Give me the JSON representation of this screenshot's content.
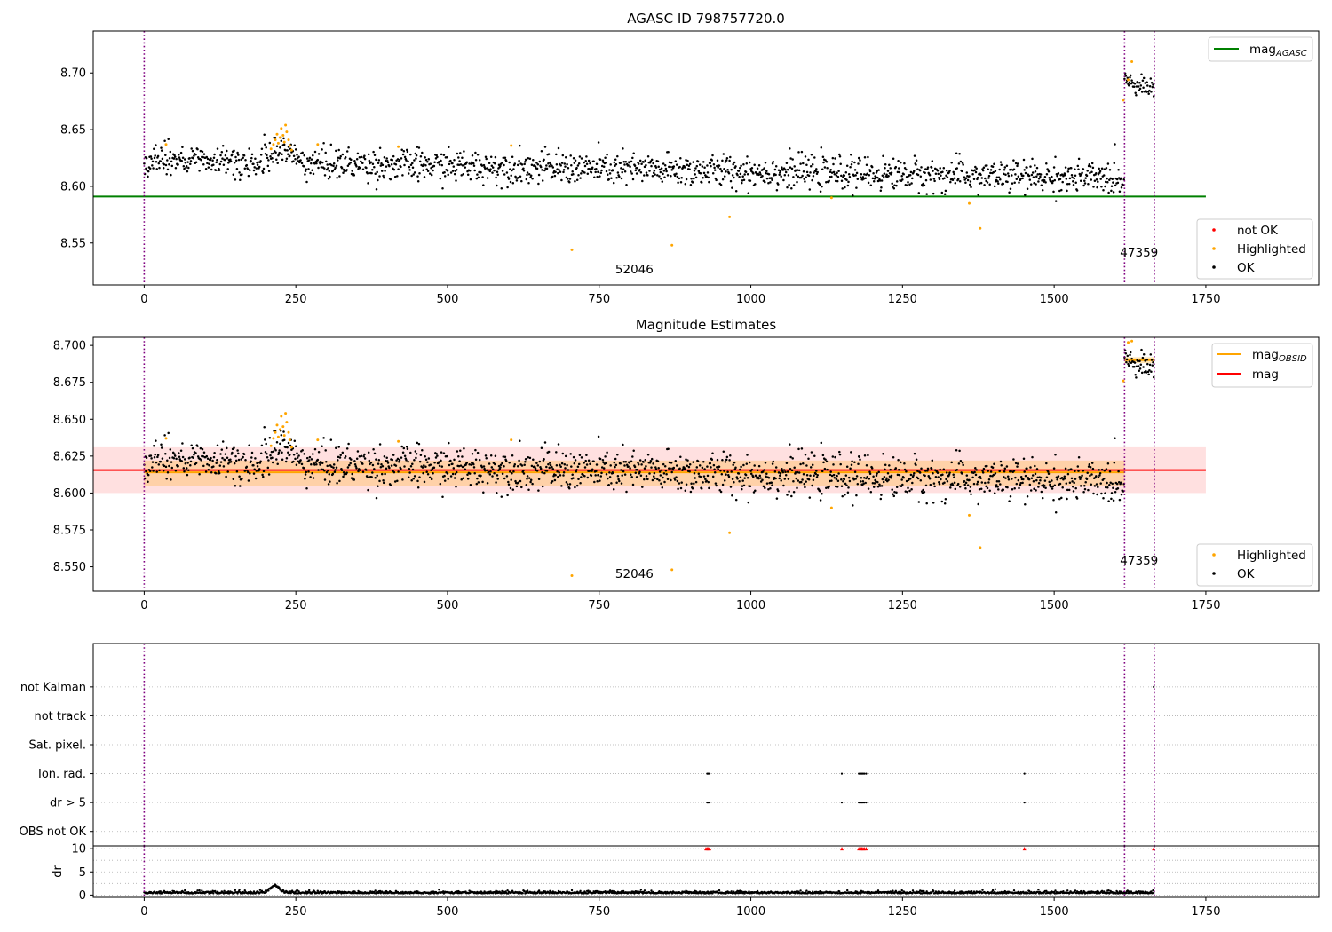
{
  "chart_data": [
    {
      "type": "scatter",
      "title": "AGASC ID 798757720.0",
      "xlim": [
        -84,
        1936
      ],
      "ylim": [
        8.513,
        8.737
      ],
      "xticks": [
        0,
        250,
        500,
        750,
        1000,
        1250,
        1500,
        1750
      ],
      "xtick_labels": [
        "0",
        "250",
        "500",
        "750",
        "1000",
        "1250",
        "1500",
        "1750"
      ],
      "yticks": [
        8.55,
        8.6,
        8.65,
        8.7
      ],
      "ytick_labels": [
        "8.55",
        "8.60",
        "8.65",
        "8.70"
      ],
      "colors": {
        "ok": "#000000",
        "highlighted": "#ffa500",
        "not_ok": "#ff0000",
        "mag_agasc": "#008000",
        "obsid_boundary": "#800080"
      },
      "observations": [
        {
          "label": "52046",
          "x_range": [
            0,
            1616
          ]
        },
        {
          "label": "47359",
          "x_range": [
            1616,
            1665
          ]
        }
      ],
      "obsid_boundaries": [
        0,
        1616,
        1665
      ],
      "annotations": [
        {
          "text": "52046",
          "x": 808,
          "y": 8.523
        },
        {
          "text": "47359",
          "x": 1640,
          "y": 8.538
        }
      ],
      "lines": [
        {
          "name": "mag_AGASC",
          "y": 8.591,
          "x_range": [
            -84,
            1750
          ]
        }
      ],
      "series": [
        {
          "name": "OK",
          "segments": [
            {
              "x_range": [
                0,
                1616
              ],
              "mean_start": 8.623,
              "mean_end": 8.607,
              "scatter": 0.007,
              "hump": {
                "x": 230,
                "width": 20,
                "height": 0.012
              }
            },
            {
              "x_range": [
                1616,
                1665
              ],
              "mean_start": 8.695,
              "mean_end": 8.685,
              "scatter": 0.004
            }
          ]
        },
        {
          "name": "Highlighted",
          "points": [
            [
              209,
              8.633
            ],
            [
              213,
              8.637
            ],
            [
              216,
              8.641
            ],
            [
              219,
              8.646
            ],
            [
              221,
              8.638
            ],
            [
              224,
              8.643
            ],
            [
              226,
              8.651
            ],
            [
              229,
              8.645
            ],
            [
              231,
              8.639
            ],
            [
              233,
              8.654
            ],
            [
              235,
              8.648
            ],
            [
              238,
              8.641
            ],
            [
              240,
              8.636
            ],
            [
              243,
              8.632
            ],
            [
              36,
              8.637
            ],
            [
              286,
              8.637
            ],
            [
              419,
              8.635
            ],
            [
              605,
              8.636
            ],
            [
              705,
              8.544
            ],
            [
              870,
              8.548
            ],
            [
              965,
              8.573
            ],
            [
              1133,
              8.59
            ],
            [
              1360,
              8.585
            ],
            [
              1378,
              8.563
            ],
            [
              1622,
              8.694
            ],
            [
              1628,
              8.71
            ],
            [
              1614,
              8.676
            ]
          ]
        },
        {
          "name": "not OK",
          "points": []
        }
      ],
      "legends": [
        {
          "position": "top-right",
          "entries": [
            {
              "label": "mag",
              "subscript": "AGASC",
              "kind": "line",
              "color": "#008000"
            }
          ]
        },
        {
          "position": "lower-right",
          "entries": [
            {
              "label": "not OK",
              "kind": "marker",
              "color": "#ff0000"
            },
            {
              "label": "Highlighted",
              "kind": "marker",
              "color": "#ffa500"
            },
            {
              "label": "OK",
              "kind": "marker",
              "color": "#000000"
            }
          ]
        }
      ]
    },
    {
      "type": "scatter",
      "title": "Magnitude Estimates",
      "xlim": [
        -84,
        1936
      ],
      "ylim": [
        8.5335,
        8.7055
      ],
      "xticks": [
        0,
        250,
        500,
        750,
        1000,
        1250,
        1500,
        1750
      ],
      "xtick_labels": [
        "0",
        "250",
        "500",
        "750",
        "1000",
        "1250",
        "1500",
        "1750"
      ],
      "yticks": [
        8.55,
        8.575,
        8.6,
        8.625,
        8.65,
        8.675,
        8.7
      ],
      "ytick_labels": [
        "8.550",
        "8.575",
        "8.600",
        "8.625",
        "8.650",
        "8.675",
        "8.700"
      ],
      "colors": {
        "ok": "#000000",
        "highlighted": "#ffa500",
        "mag": "#ff0000",
        "mag_obsid": "#ffa500",
        "obsid_boundary": "#800080"
      },
      "obsid_boundaries": [
        0,
        1616,
        1665
      ],
      "annotations": [
        {
          "text": "52046",
          "x": 808,
          "y": 8.5425
        },
        {
          "text": "47359",
          "x": 1640,
          "y": 8.5515
        }
      ],
      "bands": [
        {
          "name": "mag",
          "y_range": [
            8.6,
            8.631
          ],
          "x_range": [
            -84,
            1750
          ],
          "color": "#ff0000",
          "opacity": 0.12
        },
        {
          "name": "mag_OBSID 52046",
          "y_range": [
            8.605,
            8.622
          ],
          "x_range": [
            0,
            1616
          ],
          "color": "#ffa500",
          "opacity": 0.25
        },
        {
          "name": "mag_OBSID 47359",
          "y_range": [
            8.688,
            8.692
          ],
          "x_range": [
            1616,
            1665
          ],
          "color": "#ffa500",
          "opacity": 0.3
        }
      ],
      "lines": [
        {
          "name": "mag",
          "y": 8.6155,
          "x_range": [
            -84,
            1750
          ],
          "color": "#ff0000"
        },
        {
          "name": "mag_OBSID",
          "y": 8.614,
          "x_range": [
            0,
            1616
          ],
          "color": "#ffa500"
        },
        {
          "name": "mag_OBSID",
          "y": 8.69,
          "x_range": [
            1616,
            1665
          ],
          "color": "#ffa500"
        }
      ],
      "series": [
        {
          "name": "OK",
          "segments": [
            {
              "x_range": [
                0,
                1616
              ],
              "mean_start": 8.622,
              "mean_end": 8.607,
              "scatter": 0.007,
              "hump": {
                "x": 230,
                "width": 20,
                "height": 0.012
              }
            },
            {
              "x_range": [
                1616,
                1665
              ],
              "mean_start": 8.692,
              "mean_end": 8.684,
              "scatter": 0.004
            }
          ]
        },
        {
          "name": "Highlighted",
          "points": [
            [
              209,
              8.632
            ],
            [
              213,
              8.637
            ],
            [
              216,
              8.641
            ],
            [
              219,
              8.646
            ],
            [
              221,
              8.638
            ],
            [
              224,
              8.643
            ],
            [
              226,
              8.652
            ],
            [
              229,
              8.645
            ],
            [
              231,
              8.639
            ],
            [
              233,
              8.654
            ],
            [
              235,
              8.648
            ],
            [
              238,
              8.641
            ],
            [
              240,
              8.636
            ],
            [
              243,
              8.631
            ],
            [
              36,
              8.637
            ],
            [
              286,
              8.636
            ],
            [
              419,
              8.635
            ],
            [
              605,
              8.636
            ],
            [
              705,
              8.544
            ],
            [
              870,
              8.548
            ],
            [
              965,
              8.573
            ],
            [
              1133,
              8.59
            ],
            [
              1360,
              8.585
            ],
            [
              1378,
              8.563
            ],
            [
              1622,
              8.702
            ],
            [
              1628,
              8.703
            ],
            [
              1614,
              8.676
            ]
          ]
        }
      ],
      "legends": [
        {
          "position": "top-right",
          "entries": [
            {
              "label": "mag",
              "subscript": "OBSID",
              "kind": "line",
              "color": "#ffa500"
            },
            {
              "label": "mag",
              "kind": "line",
              "color": "#ff0000"
            }
          ]
        },
        {
          "position": "lower-right",
          "entries": [
            {
              "label": "Highlighted",
              "kind": "marker",
              "color": "#ffa500"
            },
            {
              "label": "OK",
              "kind": "marker",
              "color": "#000000"
            }
          ]
        }
      ]
    },
    {
      "type": "scatter",
      "title": "",
      "xlim": [
        -84,
        1936
      ],
      "ylim": [
        -0.5,
        6.5
      ],
      "yticks": [
        0,
        1,
        2,
        3,
        4,
        5
      ],
      "ytick_labels": [
        "OBS not OK",
        "dr > 5",
        "Ion. rad.",
        "Sat. pixel.",
        "not track",
        "not Kalman"
      ],
      "grid": "horizontal dotted",
      "obsid_boundaries": [
        0,
        1616,
        1665
      ],
      "series": [
        {
          "name": "dr > 5",
          "y": 1,
          "x": [
            928,
            930,
            932,
            1150,
            1178,
            1181,
            1183,
            1185,
            1187,
            1190,
            1451
          ]
        },
        {
          "name": "Ion. rad.",
          "y": 2,
          "x": [
            928,
            930,
            932,
            1150,
            1178,
            1181,
            1183,
            1185,
            1187,
            1190,
            1451
          ]
        },
        {
          "name": "not Kalman",
          "y": 5,
          "x": [
            1664
          ]
        }
      ]
    },
    {
      "type": "scatter",
      "title": "",
      "xlim": [
        -84,
        1936
      ],
      "ylim": [
        -0.5,
        10.6
      ],
      "xticks": [
        0,
        250,
        500,
        750,
        1000,
        1250,
        1500,
        1750
      ],
      "xtick_labels": [
        "0",
        "250",
        "500",
        "750",
        "1000",
        "1250",
        "1500",
        "1750"
      ],
      "yticks": [
        0,
        5,
        10
      ],
      "ytick_labels": [
        "0",
        "5",
        "10"
      ],
      "ylabel": "dr",
      "grid": "horizontal dotted",
      "obsid_boundaries": [
        0,
        1616,
        1665
      ],
      "clip_markers": {
        "y": 10,
        "color": "#ff0000",
        "x": [
          926,
          928,
          930,
          932,
          1150,
          1178,
          1181,
          1183,
          1185,
          1187,
          1190,
          1451,
          1664
        ]
      },
      "series": [
        {
          "name": "dr",
          "segments": [
            {
              "x_range": [
                0,
                1665
              ],
              "baseline": 0.35,
              "scatter": 0.25,
              "hump": {
                "x": 215,
                "width": 10,
                "height": 1.6
              }
            }
          ]
        }
      ]
    }
  ]
}
